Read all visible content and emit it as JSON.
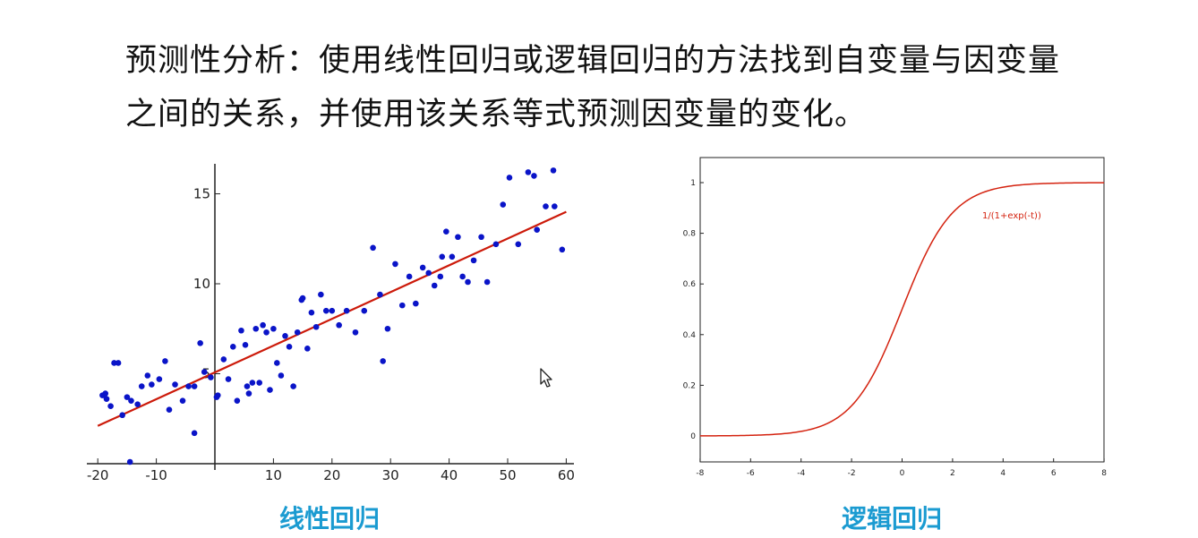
{
  "heading": {
    "line1": "预测性分析：使用线性回归或逻辑回归的方法找到自变量与因变量",
    "line2": "之间的关系，并使用该关系等式预测因变量的变化。"
  },
  "captions": {
    "left": "线性回归",
    "right": "逻辑回归"
  },
  "colors": {
    "caption": "#1b9bd1",
    "points": "#0a14c8",
    "regression_line": "#cc1a0a",
    "sigmoid_line": "#d4220f",
    "sigmoid_label": "#d4220f"
  },
  "chart_data": [
    {
      "type": "scatter",
      "title": "",
      "xlabel": "",
      "ylabel": "",
      "xlim": [
        -20,
        60
      ],
      "ylim": [
        0,
        16
      ],
      "xticks": [
        "-20",
        "-10",
        "10",
        "20",
        "30",
        "40",
        "50",
        "60"
      ],
      "yticks": [
        "5",
        "10",
        "15"
      ],
      "grid": false,
      "points": {
        "x": [
          -19.2,
          -18.7,
          -17.8,
          -17.2,
          -16.5,
          -15.8,
          -15,
          -14.3,
          -13.2,
          -12.5,
          -11.5,
          -10.8,
          -9.5,
          -8.5,
          -7.8,
          -6.8,
          -5.5,
          -4.5,
          -3.5,
          -2.5,
          -1.8,
          -0.7,
          0.5,
          1.5,
          2.3,
          3.1,
          3.8,
          4.5,
          5.2,
          5.8,
          6.4,
          7,
          7.6,
          8.2,
          8.8,
          9.4,
          10,
          10.6,
          11.3,
          12,
          12.7,
          13.4,
          14.1,
          15,
          15.8,
          16.5,
          17.3,
          18.1,
          19,
          20,
          21.2,
          22.5,
          24,
          25.5,
          27,
          28.2,
          29.5,
          30.8,
          32,
          33.2,
          34.3,
          35.5,
          36.5,
          37.5,
          38.5,
          39.5,
          40.5,
          41.5,
          42.3,
          43.2,
          44.2,
          45.5,
          46.5,
          48,
          49.2,
          50.3,
          51.8,
          53.5,
          55,
          56.5,
          57.8,
          59.3,
          -18.5,
          -14.5,
          -3.5,
          0.3,
          5.5,
          14.8,
          28.7,
          38.8,
          54.5,
          58
        ],
        "y": [
          3.8,
          3.9,
          3.2,
          5.6,
          5.6,
          2.7,
          3.7,
          3.5,
          3.3,
          4.3,
          4.9,
          4.4,
          4.7,
          5.7,
          3,
          4.4,
          3.5,
          4.3,
          4.3,
          6.7,
          5.1,
          4.8,
          3.8,
          5.8,
          4.7,
          6.5,
          3.5,
          7.4,
          6.6,
          3.9,
          4.5,
          7.5,
          4.5,
          7.7,
          7.3,
          4.1,
          7.5,
          5.6,
          4.9,
          7.1,
          6.5,
          4.3,
          7.3,
          9.2,
          6.4,
          8.4,
          7.6,
          9.4,
          8.5,
          8.5,
          7.7,
          8.5,
          7.3,
          8.5,
          12,
          9.4,
          7.5,
          11.1,
          8.8,
          10.4,
          8.9,
          10.9,
          10.6,
          9.9,
          10.4,
          12.9,
          11.5,
          12.6,
          10.4,
          10.1,
          11.3,
          12.6,
          10.1,
          12.2,
          14.4,
          15.9,
          12.2,
          16.2,
          13,
          14.3,
          16.3,
          11.9,
          3.6,
          0.1,
          1.7,
          3.7,
          4.3,
          9.1,
          5.7,
          11.5,
          16,
          14.3
        ]
      },
      "regression_line": {
        "x": [
          -20,
          60
        ],
        "y": [
          2.1,
          14
        ]
      }
    },
    {
      "type": "line",
      "title": "",
      "xlabel": "",
      "ylabel": "",
      "xlim": [
        -8,
        8
      ],
      "ylim": [
        0,
        1
      ],
      "xticks": [
        "-8",
        "-6",
        "-4",
        "-2",
        "0",
        "2",
        "4",
        "6",
        "8"
      ],
      "yticks": [
        "0",
        "0.2",
        "0.4",
        "0.6",
        "0.8",
        "1"
      ],
      "grid": false,
      "series": [
        {
          "name": "1/(1+exp(-t))",
          "function": "sigmoid"
        }
      ]
    }
  ]
}
